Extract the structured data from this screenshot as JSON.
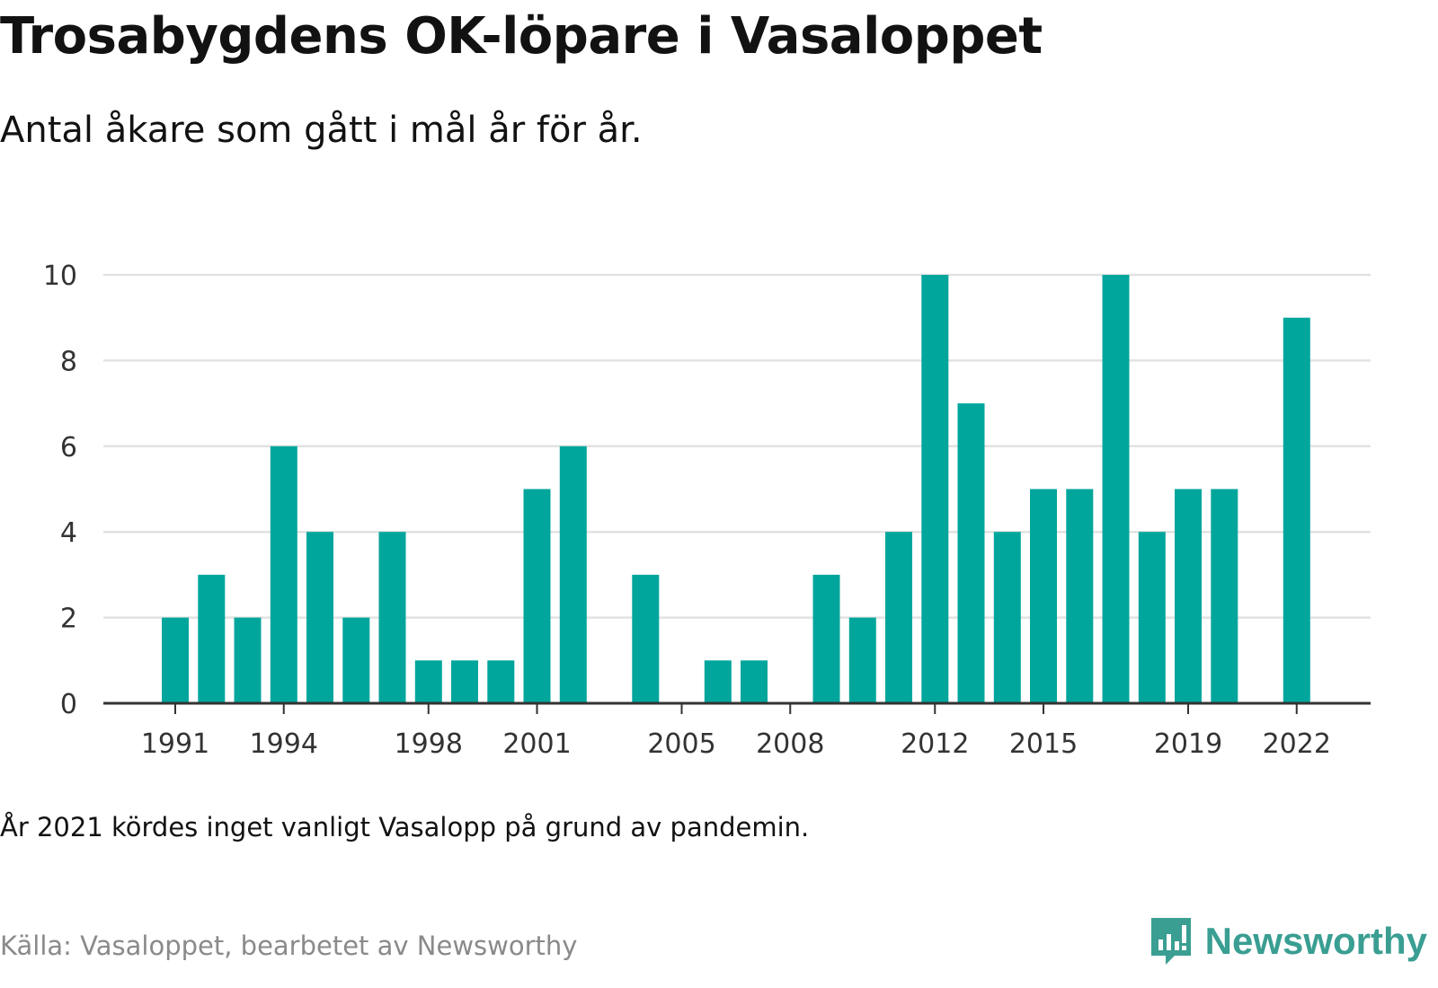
{
  "title": "Trosabygdens OK-löpare i Vasaloppet",
  "subtitle": "Antal åkare som gått i mål år för år.",
  "note": "År 2021 kördes inget vanligt Vasalopp på grund av pandemin.",
  "source": "Källa: Vasaloppet, bearbetet av Newsworthy",
  "brand": {
    "name": "Newsworthy",
    "icon": "newsworthy-logo-icon",
    "color": "#3a9e92"
  },
  "chart_data": {
    "type": "bar",
    "color": "#00a69c",
    "years": [
      1991,
      1992,
      1993,
      1994,
      1995,
      1996,
      1997,
      1998,
      1999,
      2000,
      2001,
      2002,
      2003,
      2004,
      2005,
      2006,
      2007,
      2008,
      2009,
      2010,
      2011,
      2012,
      2013,
      2014,
      2015,
      2016,
      2017,
      2018,
      2019,
      2020,
      2021,
      2022
    ],
    "values": [
      2,
      3,
      2,
      6,
      4,
      2,
      4,
      1,
      1,
      1,
      5,
      6,
      0,
      3,
      0,
      1,
      1,
      0,
      3,
      2,
      4,
      10,
      7,
      4,
      5,
      5,
      10,
      4,
      5,
      5,
      0,
      9
    ],
    "x_tick_labels": [
      "1991",
      "1994",
      "1998",
      "2001",
      "2005",
      "2008",
      "2012",
      "2015",
      "2019",
      "2022"
    ],
    "y_ticks": [
      0,
      2,
      4,
      6,
      8,
      10
    ],
    "ylim": [
      0,
      10
    ],
    "grid": true,
    "legend": "none"
  }
}
